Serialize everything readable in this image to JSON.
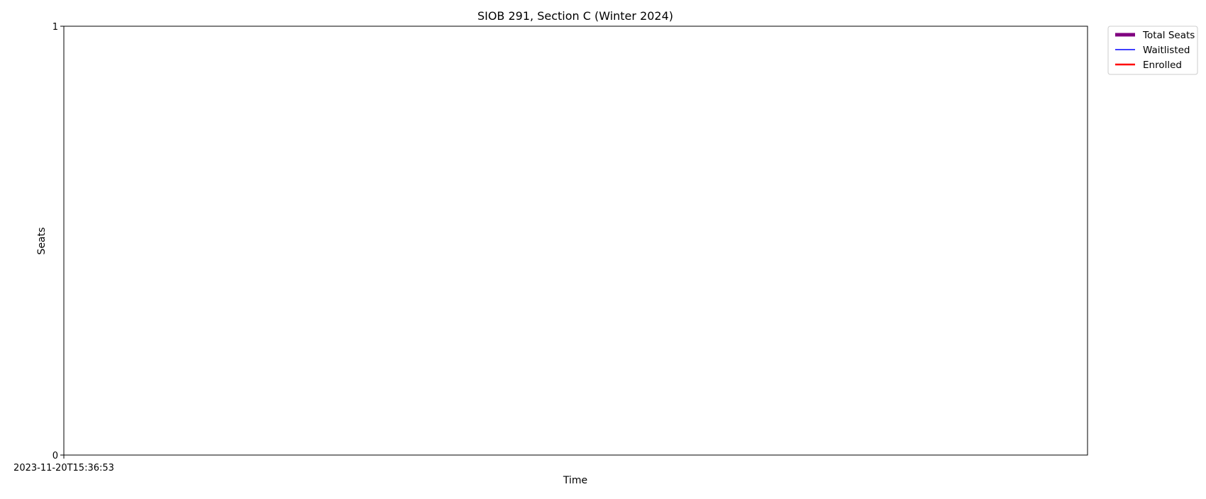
{
  "chart_data": {
    "type": "line",
    "title": "SIOB 291, Section C (Winter 2024)",
    "xlabel": "Time",
    "ylabel": "Seats",
    "x_ticks": [
      "2023-11-20T15:36:53"
    ],
    "y_ticks": [
      0,
      1
    ],
    "ylim": [
      0,
      1
    ],
    "legend_placement": "outside top-right",
    "grid": false,
    "series": [
      {
        "name": "Total Seats",
        "color": "#800080",
        "x": [
          "2023-11-20T15:36:53"
        ],
        "values": [
          0
        ]
      },
      {
        "name": "Waitlisted",
        "color": "#0000ff",
        "x": [
          "2023-11-20T15:36:53"
        ],
        "values": [
          0
        ]
      },
      {
        "name": "Enrolled",
        "color": "#ff0000",
        "x": [
          "2023-11-20T15:36:53"
        ],
        "values": [
          0
        ]
      }
    ]
  }
}
